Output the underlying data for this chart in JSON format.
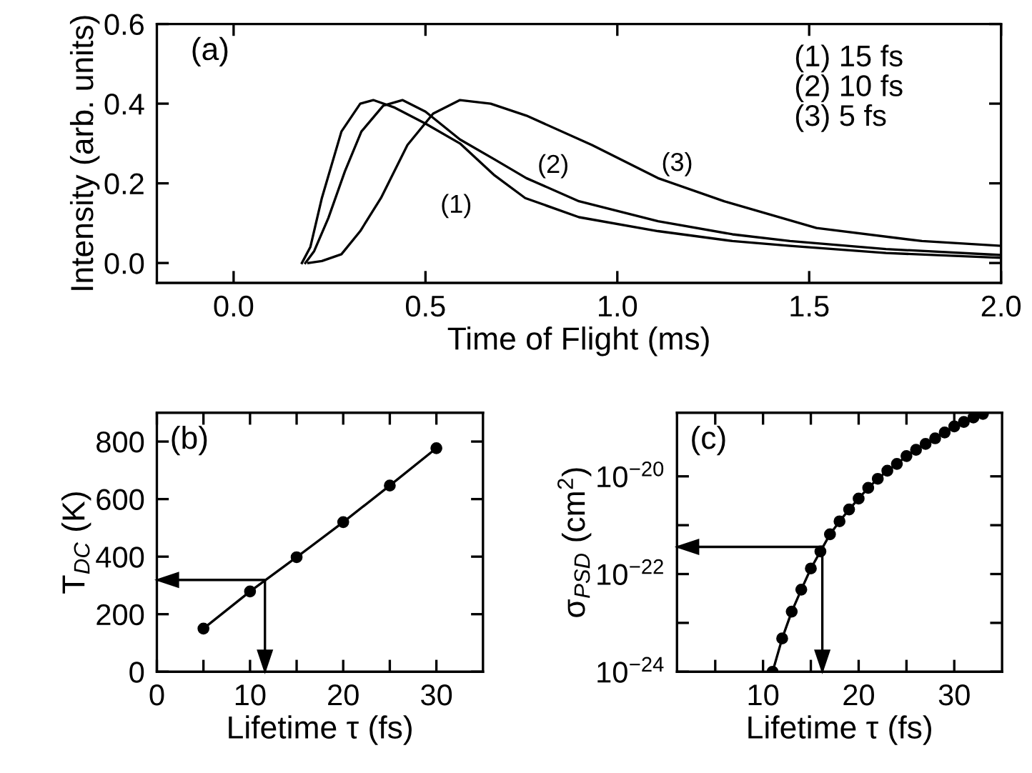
{
  "chart_data": [
    {
      "type": "line",
      "xlabel": "Time of Flight (ms)",
      "ylabel": "Intensity (arb. units)",
      "marker": "none",
      "line_style": "solid",
      "legend": false,
      "grid": false,
      "xlim": [
        -0.2,
        2.0
      ],
      "ylim": [
        -0.05,
        0.6
      ],
      "xticks": [
        {
          "value": 0,
          "label": "0.0"
        },
        {
          "value": 0.5,
          "label": "0.5"
        },
        {
          "value": 1.0,
          "label": "1.0"
        },
        {
          "value": 1.5,
          "label": "1.5"
        },
        {
          "value": 2.0,
          "label": "2.0"
        }
      ],
      "yticks": [
        {
          "value": 0,
          "label": "0.0"
        },
        {
          "value": 0.2,
          "label": "0.2"
        },
        {
          "value": 0.4,
          "label": "0.4"
        },
        {
          "value": 0.6,
          "label": "0.6"
        }
      ],
      "series": [
        {
          "name": "(1)",
          "color": "#000000",
          "x": [
            0.178,
            0.2,
            0.23,
            0.281,
            0.33,
            0.364,
            0.42,
            0.5,
            0.59,
            0.68,
            0.76,
            0.9,
            1.106,
            1.3,
            1.45,
            1.7,
            2.0
          ],
          "values": [
            0.0,
            0.04,
            0.163,
            0.33,
            0.4,
            0.409,
            0.39,
            0.35,
            0.3,
            0.22,
            0.163,
            0.115,
            0.08,
            0.055,
            0.043,
            0.025,
            0.013
          ]
        },
        {
          "name": "(2)",
          "color": "#000000",
          "x": [
            0.187,
            0.21,
            0.247,
            0.29,
            0.333,
            0.39,
            0.44,
            0.5,
            0.59,
            0.68,
            0.763,
            0.9,
            1.106,
            1.3,
            1.45,
            1.7,
            2.0
          ],
          "values": [
            0.0,
            0.03,
            0.113,
            0.23,
            0.33,
            0.395,
            0.409,
            0.38,
            0.31,
            0.26,
            0.213,
            0.155,
            0.105,
            0.072,
            0.055,
            0.035,
            0.02
          ]
        },
        {
          "name": "(3)",
          "color": "#000000",
          "x": [
            0.195,
            0.23,
            0.281,
            0.33,
            0.384,
            0.453,
            0.52,
            0.59,
            0.67,
            0.763,
            0.934,
            1.106,
            1.278,
            1.519,
            1.794,
            2.0
          ],
          "values": [
            0.0,
            0.005,
            0.022,
            0.08,
            0.163,
            0.296,
            0.375,
            0.409,
            0.4,
            0.37,
            0.296,
            0.213,
            0.155,
            0.088,
            0.055,
            0.043
          ]
        }
      ],
      "annotations": [
        "(a)",
        "(1) 15 fs",
        "(2) 10 fs",
        "(3) 5 fs"
      ]
    },
    {
      "type": "line",
      "xlabel": "Lifetime τ (fs)",
      "ylabel": "T$_{DC}$ (K)",
      "marker": "circle",
      "line_style": "solid",
      "legend": false,
      "grid": false,
      "xlim": [
        0,
        35
      ],
      "ylim": [
        0,
        900
      ],
      "xticks": [
        0,
        {
          "value": 5,
          "label": null
        },
        10,
        {
          "value": 15,
          "label": null
        },
        20,
        {
          "value": 25,
          "label": null
        },
        30
      ],
      "yticks": [
        0,
        200,
        400,
        600,
        800
      ],
      "series": [
        {
          "color": "#000000",
          "x": [
            5,
            10,
            15,
            20,
            25,
            30
          ],
          "values": [
            150,
            279,
            398,
            520,
            647,
            777
          ]
        }
      ],
      "ref_lines": [
        {
          "axis": "x",
          "value": 11.6
        },
        {
          "axis": "y",
          "value": 319
        }
      ],
      "annotations": [
        "(b)"
      ]
    },
    {
      "type": "line",
      "xlabel": "Lifetime τ (fs)",
      "ylabel": "σ$_{PSD}$ (cm$^{2}$)",
      "marker": "circle",
      "line_style": "solid",
      "legend": false,
      "grid": false,
      "log": "y",
      "xlim": [
        1,
        35
      ],
      "ylim": [
        1e-24,
        2e-19
      ],
      "xticks": [
        {
          "value": 5,
          "label": null
        },
        10,
        {
          "value": 15,
          "label": null
        },
        20,
        {
          "value": 25,
          "label": null
        },
        30
      ],
      "yticks": [
        {
          "value": 1e-24,
          "label": "10$^{−24}$"
        },
        {
          "value": 1e-23,
          "label": null
        },
        {
          "value": 1e-22,
          "label": "10$^{−22}$"
        },
        {
          "value": 1e-21,
          "label": null
        },
        {
          "value": 1e-20,
          "label": "10$^{−20}$"
        }
      ],
      "series": [
        {
          "color": "#000000",
          "x": [
            11,
            12,
            13,
            14,
            15,
            16,
            17,
            18,
            19,
            20,
            21,
            22,
            23,
            24,
            25,
            26,
            27,
            28,
            29,
            30,
            31,
            32,
            33
          ],
          "values": [
            1e-24,
            4.8e-24,
            1.7e-23,
            4.8e-23,
            1.3e-22,
            2.9e-22,
            6.5e-22,
            1.2e-21,
            2.1e-21,
            3.5e-21,
            5.8e-21,
            8.9e-21,
            1.3e-20,
            1.8e-20,
            2.6e-20,
            3.5e-20,
            4.6e-20,
            6e-20,
            7.9e-20,
            1.05e-19,
            1.3e-19,
            1.6e-19,
            1.9e-19
          ]
        }
      ],
      "ref_lines": [
        {
          "axis": "x",
          "value": 16.2
        },
        {
          "axis": "y",
          "value": 3.6e-22
        }
      ],
      "annotations": [
        "(c)"
      ]
    }
  ]
}
